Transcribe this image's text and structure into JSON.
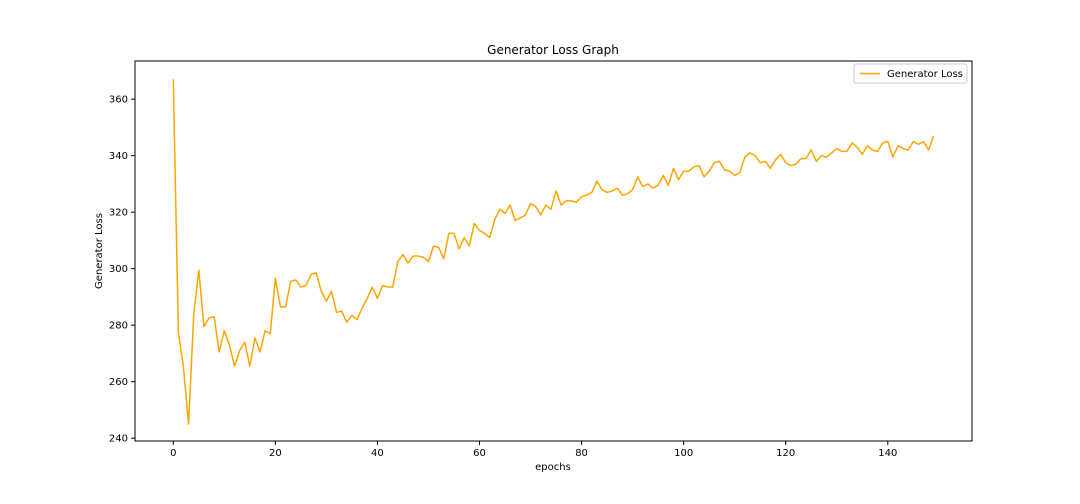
{
  "chart_data": {
    "type": "line",
    "title": "Generator Loss Graph",
    "xlabel": "epochs",
    "ylabel": "Generator Loss",
    "xlim": [
      -7.5,
      156.5
    ],
    "ylim": [
      239,
      373.5
    ],
    "xticks": [
      0,
      20,
      40,
      60,
      80,
      100,
      120,
      140
    ],
    "yticks": [
      240,
      260,
      280,
      300,
      320,
      340,
      360
    ],
    "grid": false,
    "legend_position": "top-right",
    "series": [
      {
        "name": "Generator Loss",
        "color": "#ffa500",
        "x": [
          0,
          1,
          2,
          3,
          4,
          5,
          6,
          7,
          8,
          9,
          10,
          11,
          12,
          13,
          14,
          15,
          16,
          17,
          18,
          19,
          20,
          21,
          22,
          23,
          24,
          25,
          26,
          27,
          28,
          29,
          30,
          31,
          32,
          33,
          34,
          35,
          36,
          37,
          38,
          39,
          40,
          41,
          42,
          43,
          44,
          45,
          46,
          47,
          48,
          49,
          50,
          51,
          52,
          53,
          54,
          55,
          56,
          57,
          58,
          59,
          60,
          61,
          62,
          63,
          64,
          65,
          66,
          67,
          68,
          69,
          70,
          71,
          72,
          73,
          74,
          75,
          76,
          77,
          78,
          79,
          80,
          81,
          82,
          83,
          84,
          85,
          86,
          87,
          88,
          89,
          90,
          91,
          92,
          93,
          94,
          95,
          96,
          97,
          98,
          99,
          100,
          101,
          102,
          103,
          104,
          105,
          106,
          107,
          108,
          109,
          110,
          111,
          112,
          113,
          114,
          115,
          116,
          117,
          118,
          119,
          120,
          121,
          122,
          123,
          124,
          125,
          126,
          127,
          128,
          129,
          130,
          131,
          132,
          133,
          134,
          135,
          136,
          137,
          138,
          139,
          140,
          141,
          142,
          143,
          144,
          145,
          146,
          147,
          148,
          149
        ],
        "values": [
          367,
          277.5,
          265,
          245,
          283.5,
          299.5,
          279.5,
          282.5,
          283,
          270.5,
          278,
          273,
          265.5,
          271,
          274,
          265.5,
          275.5,
          270.5,
          278,
          277,
          296.5,
          286.5,
          286.5,
          295.5,
          296,
          293.5,
          294,
          298,
          298.5,
          292,
          288.5,
          292,
          284.5,
          285,
          281,
          283.5,
          282,
          286,
          289.5,
          293.5,
          289.5,
          294,
          293.5,
          293.5,
          302.5,
          305,
          302,
          304.5,
          304.5,
          304,
          302.5,
          308,
          307.5,
          303.5,
          312.5,
          312.5,
          307,
          311,
          308,
          316,
          313.5,
          312.5,
          311,
          317.5,
          321,
          319.5,
          322.5,
          317,
          318,
          319,
          323,
          322,
          319,
          322.5,
          321,
          327.5,
          322.5,
          324,
          324,
          323.5,
          325.5,
          326,
          327,
          331,
          328,
          327,
          327.5,
          328.5,
          326,
          326.5,
          328,
          332.5,
          329,
          330,
          328.5,
          329.5,
          333,
          329.5,
          335.5,
          331.5,
          334.5,
          334.5,
          336,
          336.5,
          332.5,
          334.5,
          337.5,
          338,
          335,
          334.5,
          333,
          334,
          339.5,
          341,
          340,
          337.5,
          338,
          335.5,
          338.5,
          340.5,
          337.5,
          336.5,
          337,
          339,
          339,
          342,
          338,
          340,
          339.5,
          341,
          342.5,
          341.5,
          341.5,
          344.5,
          343,
          340.5,
          343.5,
          342,
          341.5,
          344.5,
          345,
          339.5,
          343.5,
          342.5,
          342,
          345,
          344,
          345,
          342,
          347
        ]
      }
    ]
  }
}
